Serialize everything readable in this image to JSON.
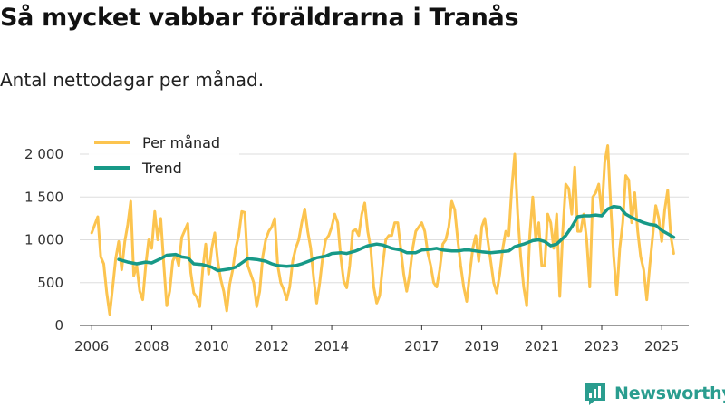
{
  "title": "Så mycket vabbar föräldrarna i Tranås",
  "subtitle": "Antal nettodagar per månad.",
  "brand": {
    "name": "Newsworthy",
    "icon": "newsworthy-logo-icon",
    "color": "#2a9d8f"
  },
  "chart_data": {
    "type": "line",
    "title": "Så mycket vabbar föräldrarna i Tranås",
    "subtitle": "Antal nettodagar per månad.",
    "xlabel": "",
    "ylabel": "",
    "xlim": [
      2005.6,
      2025.9
    ],
    "ylim": [
      0,
      2000
    ],
    "y_ticks": [
      0,
      500,
      1000,
      1500,
      2000
    ],
    "y_tick_labels": [
      "0",
      "500",
      "1 000",
      "1 500",
      "2 000"
    ],
    "x_ticks": [
      2006,
      2008,
      2010,
      2012,
      2014,
      2017,
      2019,
      2021,
      2023,
      2025
    ],
    "x_tick_labels": [
      "2006",
      "2008",
      "2010",
      "2012",
      "2014",
      "2017",
      "2019",
      "2021",
      "2023",
      "2025"
    ],
    "grid": "horizontal",
    "legend": "top-left",
    "series": [
      {
        "name": "Per månad",
        "color": "#fcc44f",
        "points": [
          [
            2006.0,
            1080
          ],
          [
            2006.2,
            1270
          ],
          [
            2006.3,
            800
          ],
          [
            2006.4,
            720
          ],
          [
            2006.5,
            380
          ],
          [
            2006.6,
            130
          ],
          [
            2006.7,
            450
          ],
          [
            2006.8,
            780
          ],
          [
            2006.9,
            980
          ],
          [
            2007.0,
            650
          ],
          [
            2007.1,
            980
          ],
          [
            2007.2,
            1180
          ],
          [
            2007.3,
            1450
          ],
          [
            2007.4,
            580
          ],
          [
            2007.5,
            700
          ],
          [
            2007.6,
            400
          ],
          [
            2007.7,
            300
          ],
          [
            2007.8,
            700
          ],
          [
            2007.9,
            1000
          ],
          [
            2008.0,
            900
          ],
          [
            2008.1,
            1330
          ],
          [
            2008.2,
            1000
          ],
          [
            2008.3,
            1250
          ],
          [
            2008.4,
            720
          ],
          [
            2008.5,
            230
          ],
          [
            2008.6,
            400
          ],
          [
            2008.7,
            750
          ],
          [
            2008.8,
            830
          ],
          [
            2008.9,
            700
          ],
          [
            2009.0,
            1030
          ],
          [
            2009.2,
            1190
          ],
          [
            2009.3,
            620
          ],
          [
            2009.4,
            380
          ],
          [
            2009.5,
            330
          ],
          [
            2009.6,
            220
          ],
          [
            2009.7,
            650
          ],
          [
            2009.8,
            950
          ],
          [
            2009.9,
            600
          ],
          [
            2010.0,
            900
          ],
          [
            2010.1,
            1080
          ],
          [
            2010.2,
            750
          ],
          [
            2010.3,
            540
          ],
          [
            2010.4,
            400
          ],
          [
            2010.5,
            170
          ],
          [
            2010.6,
            480
          ],
          [
            2010.7,
            650
          ],
          [
            2010.8,
            900
          ],
          [
            2010.9,
            1050
          ],
          [
            2011.0,
            1330
          ],
          [
            2011.1,
            1320
          ],
          [
            2011.2,
            700
          ],
          [
            2011.3,
            600
          ],
          [
            2011.4,
            500
          ],
          [
            2011.5,
            220
          ],
          [
            2011.6,
            400
          ],
          [
            2011.7,
            800
          ],
          [
            2011.8,
            1000
          ],
          [
            2011.9,
            1100
          ],
          [
            2012.0,
            1150
          ],
          [
            2012.1,
            1250
          ],
          [
            2012.2,
            700
          ],
          [
            2012.3,
            500
          ],
          [
            2012.4,
            420
          ],
          [
            2012.5,
            300
          ],
          [
            2012.6,
            450
          ],
          [
            2012.7,
            750
          ],
          [
            2012.8,
            900
          ],
          [
            2012.9,
            1000
          ],
          [
            2013.0,
            1200
          ],
          [
            2013.1,
            1360
          ],
          [
            2013.2,
            1100
          ],
          [
            2013.3,
            900
          ],
          [
            2013.4,
            550
          ],
          [
            2013.5,
            260
          ],
          [
            2013.6,
            500
          ],
          [
            2013.7,
            800
          ],
          [
            2013.8,
            1000
          ],
          [
            2013.9,
            1050
          ],
          [
            2014.0,
            1150
          ],
          [
            2014.1,
            1300
          ],
          [
            2014.2,
            1200
          ],
          [
            2014.3,
            800
          ],
          [
            2014.4,
            520
          ],
          [
            2014.5,
            440
          ],
          [
            2014.6,
            700
          ],
          [
            2014.7,
            1100
          ],
          [
            2014.8,
            1120
          ],
          [
            2014.9,
            1050
          ],
          [
            2015.0,
            1300
          ],
          [
            2015.1,
            1430
          ],
          [
            2015.2,
            1100
          ],
          [
            2015.3,
            900
          ],
          [
            2015.4,
            450
          ],
          [
            2015.5,
            260
          ],
          [
            2015.6,
            350
          ],
          [
            2015.7,
            700
          ],
          [
            2015.8,
            1000
          ],
          [
            2015.9,
            1050
          ],
          [
            2016.0,
            1050
          ],
          [
            2016.1,
            1200
          ],
          [
            2016.2,
            1200
          ],
          [
            2016.3,
            900
          ],
          [
            2016.4,
            600
          ],
          [
            2016.5,
            400
          ],
          [
            2016.6,
            600
          ],
          [
            2016.7,
            900
          ],
          [
            2016.8,
            1100
          ],
          [
            2016.9,
            1150
          ],
          [
            2017.0,
            1200
          ],
          [
            2017.1,
            1100
          ],
          [
            2017.2,
            850
          ],
          [
            2017.3,
            700
          ],
          [
            2017.4,
            500
          ],
          [
            2017.5,
            450
          ],
          [
            2017.6,
            650
          ],
          [
            2017.7,
            950
          ],
          [
            2017.8,
            1000
          ],
          [
            2017.9,
            1150
          ],
          [
            2018.0,
            1450
          ],
          [
            2018.1,
            1350
          ],
          [
            2018.2,
            1000
          ],
          [
            2018.3,
            700
          ],
          [
            2018.4,
            450
          ],
          [
            2018.5,
            280
          ],
          [
            2018.6,
            600
          ],
          [
            2018.7,
            900
          ],
          [
            2018.8,
            1050
          ],
          [
            2018.9,
            750
          ],
          [
            2019.0,
            1150
          ],
          [
            2019.1,
            1250
          ],
          [
            2019.2,
            1000
          ],
          [
            2019.3,
            750
          ],
          [
            2019.4,
            500
          ],
          [
            2019.5,
            380
          ],
          [
            2019.6,
            600
          ],
          [
            2019.7,
            900
          ],
          [
            2019.8,
            1100
          ],
          [
            2019.9,
            1050
          ],
          [
            2020.0,
            1600
          ],
          [
            2020.1,
            2000
          ],
          [
            2020.2,
            1300
          ],
          [
            2020.3,
            800
          ],
          [
            2020.4,
            450
          ],
          [
            2020.5,
            230
          ],
          [
            2020.6,
            1050
          ],
          [
            2020.7,
            1500
          ],
          [
            2020.8,
            1000
          ],
          [
            2020.9,
            1200
          ],
          [
            2021.0,
            700
          ],
          [
            2021.1,
            700
          ],
          [
            2021.2,
            1300
          ],
          [
            2021.3,
            1200
          ],
          [
            2021.4,
            900
          ],
          [
            2021.5,
            1300
          ],
          [
            2021.6,
            340
          ],
          [
            2021.7,
            1100
          ],
          [
            2021.8,
            1650
          ],
          [
            2021.9,
            1600
          ],
          [
            2022.0,
            1300
          ],
          [
            2022.1,
            1850
          ],
          [
            2022.2,
            1100
          ],
          [
            2022.3,
            1100
          ],
          [
            2022.4,
            1300
          ],
          [
            2022.5,
            1000
          ],
          [
            2022.6,
            450
          ],
          [
            2022.7,
            1500
          ],
          [
            2022.8,
            1550
          ],
          [
            2022.9,
            1650
          ],
          [
            2023.0,
            1300
          ],
          [
            2023.1,
            1900
          ],
          [
            2023.2,
            2100
          ],
          [
            2023.3,
            1400
          ],
          [
            2023.4,
            800
          ],
          [
            2023.5,
            360
          ],
          [
            2023.6,
            900
          ],
          [
            2023.7,
            1200
          ],
          [
            2023.8,
            1750
          ],
          [
            2023.9,
            1700
          ],
          [
            2024.0,
            1200
          ],
          [
            2024.1,
            1550
          ],
          [
            2024.2,
            1100
          ],
          [
            2024.3,
            800
          ],
          [
            2024.4,
            650
          ],
          [
            2024.5,
            300
          ],
          [
            2024.6,
            700
          ],
          [
            2024.7,
            1050
          ],
          [
            2024.8,
            1400
          ],
          [
            2024.9,
            1250
          ],
          [
            2025.0,
            980
          ],
          [
            2025.1,
            1350
          ],
          [
            2025.2,
            1580
          ],
          [
            2025.3,
            1050
          ],
          [
            2025.4,
            840
          ]
        ]
      },
      {
        "name": "Trend",
        "color": "#179987",
        "points": [
          [
            2006.9,
            770
          ],
          [
            2007.2,
            740
          ],
          [
            2007.5,
            720
          ],
          [
            2007.8,
            740
          ],
          [
            2008.0,
            730
          ],
          [
            2008.3,
            780
          ],
          [
            2008.5,
            820
          ],
          [
            2008.8,
            830
          ],
          [
            2009.0,
            800
          ],
          [
            2009.2,
            790
          ],
          [
            2009.4,
            720
          ],
          [
            2009.7,
            710
          ],
          [
            2010.0,
            680
          ],
          [
            2010.2,
            640
          ],
          [
            2010.4,
            650
          ],
          [
            2010.6,
            660
          ],
          [
            2010.8,
            680
          ],
          [
            2011.0,
            730
          ],
          [
            2011.2,
            780
          ],
          [
            2011.5,
            770
          ],
          [
            2011.8,
            750
          ],
          [
            2012.0,
            720
          ],
          [
            2012.2,
            700
          ],
          [
            2012.5,
            690
          ],
          [
            2012.8,
            700
          ],
          [
            2013.0,
            720
          ],
          [
            2013.3,
            760
          ],
          [
            2013.5,
            790
          ],
          [
            2013.8,
            810
          ],
          [
            2014.0,
            840
          ],
          [
            2014.3,
            850
          ],
          [
            2014.5,
            840
          ],
          [
            2014.8,
            870
          ],
          [
            2015.0,
            900
          ],
          [
            2015.2,
            930
          ],
          [
            2015.5,
            950
          ],
          [
            2015.7,
            940
          ],
          [
            2016.0,
            900
          ],
          [
            2016.3,
            880
          ],
          [
            2016.5,
            850
          ],
          [
            2016.8,
            850
          ],
          [
            2017.0,
            880
          ],
          [
            2017.3,
            890
          ],
          [
            2017.5,
            900
          ],
          [
            2017.7,
            880
          ],
          [
            2018.0,
            870
          ],
          [
            2018.2,
            870
          ],
          [
            2018.4,
            880
          ],
          [
            2018.6,
            880
          ],
          [
            2018.8,
            870
          ],
          [
            2019.0,
            860
          ],
          [
            2019.3,
            850
          ],
          [
            2019.6,
            860
          ],
          [
            2019.9,
            870
          ],
          [
            2020.1,
            920
          ],
          [
            2020.4,
            950
          ],
          [
            2020.7,
            990
          ],
          [
            2020.9,
            1000
          ],
          [
            2021.1,
            980
          ],
          [
            2021.3,
            930
          ],
          [
            2021.5,
            950
          ],
          [
            2021.8,
            1050
          ],
          [
            2022.0,
            1150
          ],
          [
            2022.2,
            1270
          ],
          [
            2022.4,
            1280
          ],
          [
            2022.6,
            1280
          ],
          [
            2022.8,
            1290
          ],
          [
            2023.0,
            1280
          ],
          [
            2023.2,
            1360
          ],
          [
            2023.4,
            1390
          ],
          [
            2023.6,
            1380
          ],
          [
            2023.8,
            1300
          ],
          [
            2024.0,
            1260
          ],
          [
            2024.2,
            1230
          ],
          [
            2024.4,
            1200
          ],
          [
            2024.6,
            1180
          ],
          [
            2024.8,
            1170
          ],
          [
            2025.0,
            1110
          ],
          [
            2025.2,
            1070
          ],
          [
            2025.4,
            1030
          ]
        ]
      }
    ]
  }
}
